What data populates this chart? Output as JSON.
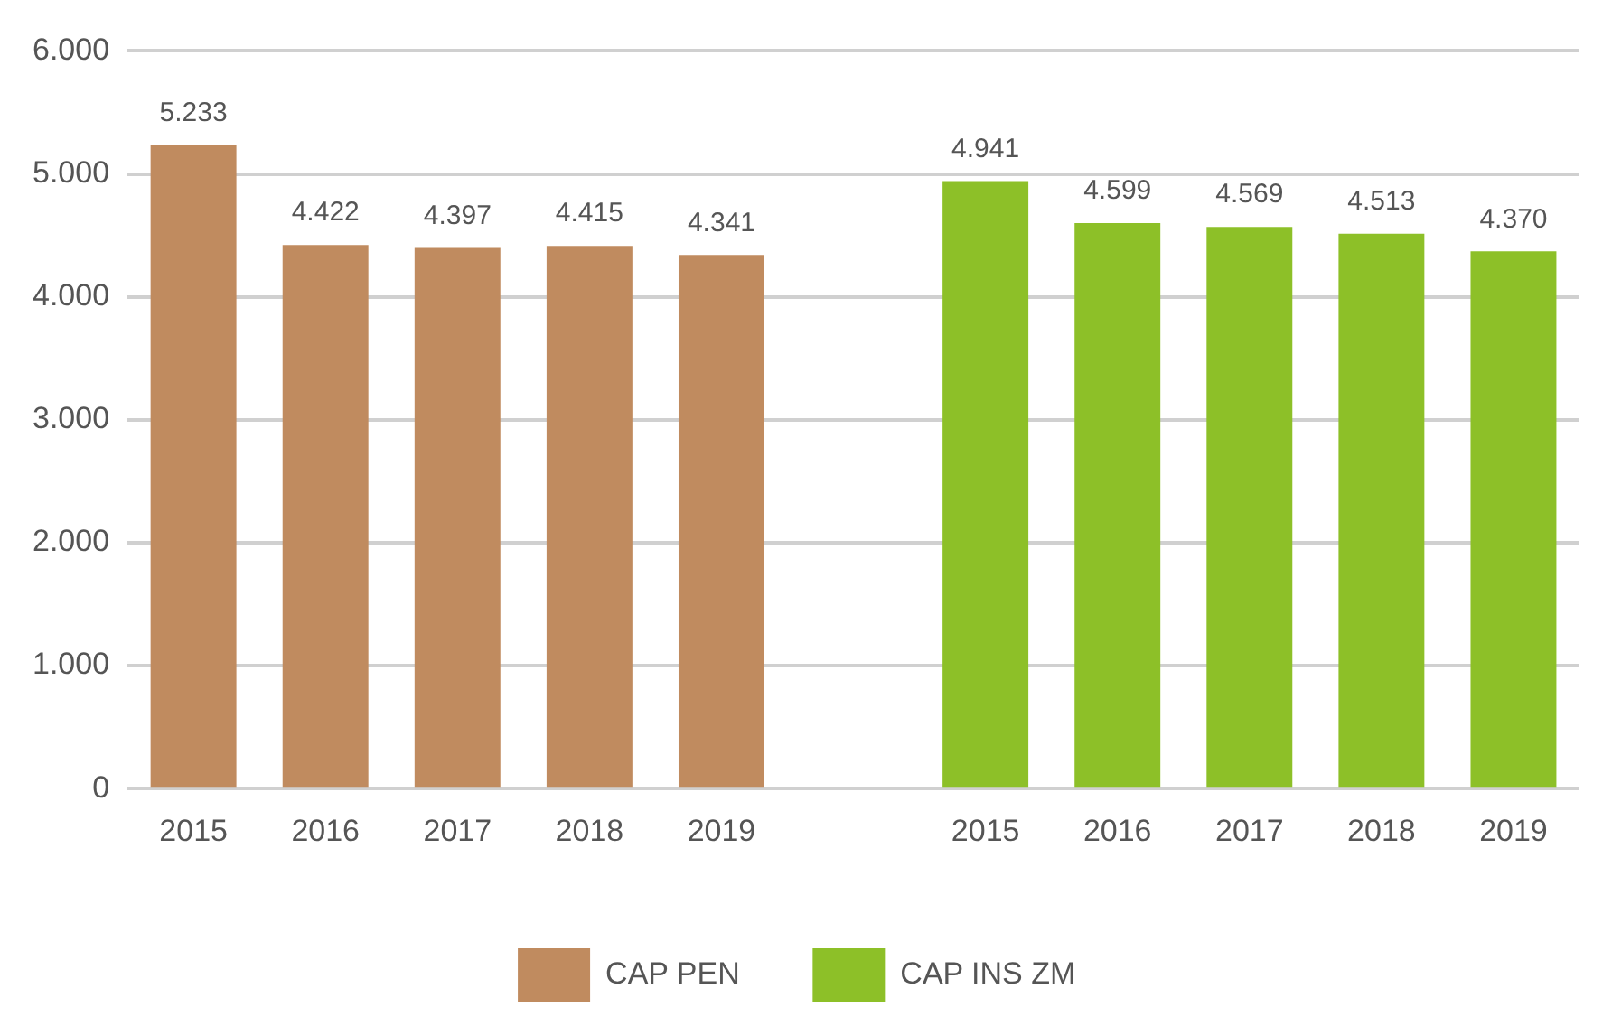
{
  "chart_data": {
    "type": "bar",
    "categories": [
      "2015",
      "2016",
      "2017",
      "2018",
      "2019",
      null,
      "2015",
      "2016",
      "2017",
      "2018",
      "2019"
    ],
    "series": [
      {
        "name": "CAP PEN",
        "color": "#c08b5f",
        "values": [
          5233,
          4422,
          4397,
          4415,
          4341,
          null,
          null,
          null,
          null,
          null,
          null
        ],
        "value_labels": [
          "5.233",
          "4.422",
          "4.397",
          "4.415",
          "4.341",
          null,
          null,
          null,
          null,
          null,
          null
        ]
      },
      {
        "name": "CAP INS ZM",
        "color": "#8dc028",
        "values": [
          null,
          null,
          null,
          null,
          null,
          null,
          4941,
          4599,
          4569,
          4513,
          4370
        ],
        "value_labels": [
          null,
          null,
          null,
          null,
          null,
          null,
          "4.941",
          "4.599",
          "4.569",
          "4.513",
          "4.370"
        ]
      }
    ],
    "ylim": [
      0,
      6000
    ],
    "yticks": [
      {
        "value": 0,
        "label": "0"
      },
      {
        "value": 1000,
        "label": "1.000"
      },
      {
        "value": 2000,
        "label": "2.000"
      },
      {
        "value": 3000,
        "label": "3.000"
      },
      {
        "value": 4000,
        "label": "4.000"
      },
      {
        "value": 5000,
        "label": "5.000"
      },
      {
        "value": 6000,
        "label": "6.000"
      }
    ],
    "grid": "y",
    "legend": "bottom"
  }
}
